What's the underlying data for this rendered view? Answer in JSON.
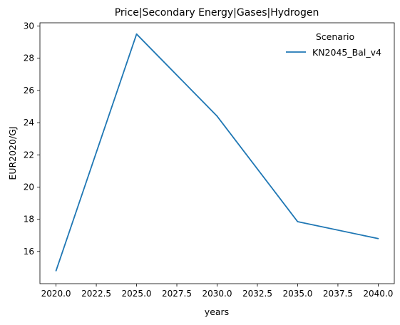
{
  "chart_data": {
    "type": "line",
    "title": "Price|Secondary Energy|Gases|Hydrogen",
    "xlabel": "years",
    "ylabel": "EUR2020/GJ",
    "x": [
      2020,
      2025,
      2030,
      2035,
      2040
    ],
    "series": [
      {
        "name": "KN2045_Bal_v4",
        "color": "#1f77b4",
        "values": [
          14.8,
          29.5,
          24.4,
          17.85,
          16.8
        ]
      }
    ],
    "xlim": [
      2019,
      2041
    ],
    "ylim": [
      14.0,
      30.2
    ],
    "xticks": [
      2020,
      2022.5,
      2025,
      2027.5,
      2030,
      2032.5,
      2035,
      2037.5,
      2040
    ],
    "xtick_labels": [
      "2020.0",
      "2022.5",
      "2025.0",
      "2027.5",
      "2030.0",
      "2032.5",
      "2035.0",
      "2037.5",
      "2040.0"
    ],
    "yticks": [
      16,
      18,
      20,
      22,
      24,
      26,
      28,
      30
    ],
    "ytick_labels": [
      "16",
      "18",
      "20",
      "22",
      "24",
      "26",
      "28",
      "30"
    ],
    "legend": {
      "title": "Scenario",
      "position": "top-right"
    },
    "grid": false
  }
}
